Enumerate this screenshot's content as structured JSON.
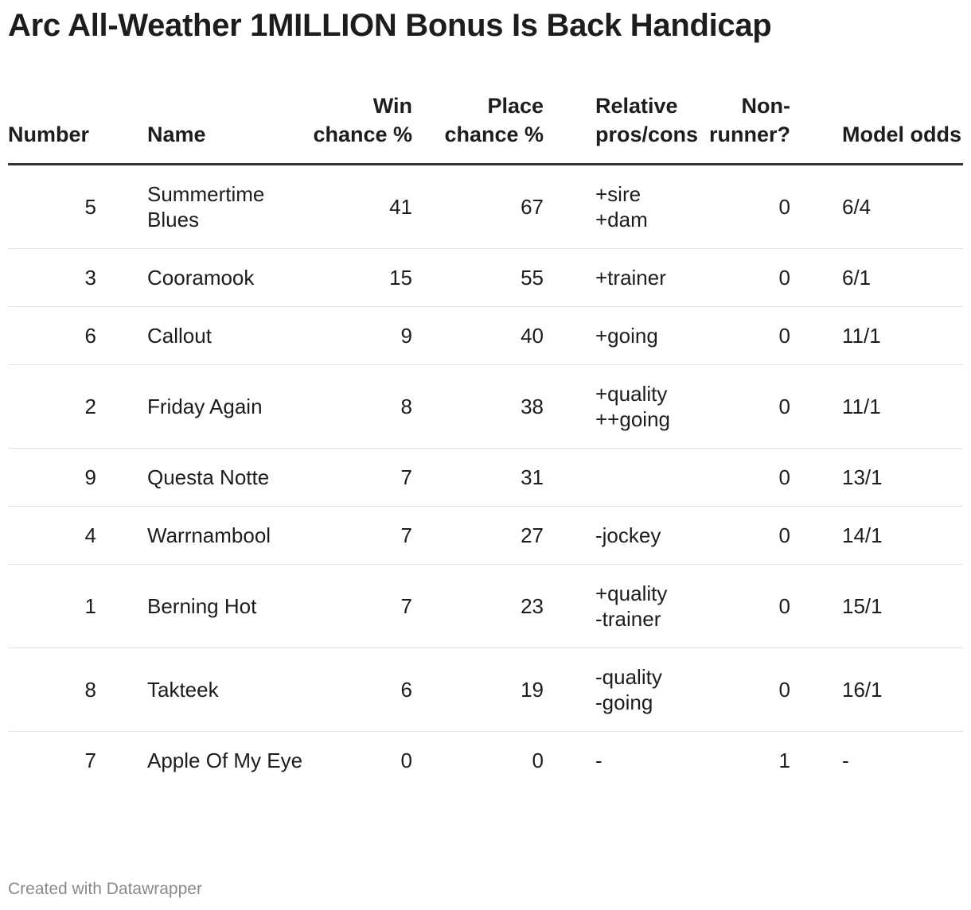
{
  "title": "Arc All-Weather 1MILLION Bonus Is Back Handicap",
  "columns": {
    "number": "Number",
    "name": "Name",
    "win": "Win chance %",
    "place": "Place chance %",
    "pros": "Relative pros/cons",
    "nonrunner": "Non-runner?",
    "odds": "Model odds"
  },
  "rows": [
    {
      "number": "5",
      "name": "Summertime Blues",
      "win": "41",
      "place": "67",
      "pros": [
        "+sire",
        "+dam"
      ],
      "nonrunner": "0",
      "odds": "6/4"
    },
    {
      "number": "3",
      "name": "Cooramook",
      "win": "15",
      "place": "55",
      "pros": [
        "+trainer"
      ],
      "nonrunner": "0",
      "odds": "6/1"
    },
    {
      "number": "6",
      "name": "Callout",
      "win": "9",
      "place": "40",
      "pros": [
        "+going"
      ],
      "nonrunner": "0",
      "odds": "11/1"
    },
    {
      "number": "2",
      "name": "Friday Again",
      "win": "8",
      "place": "38",
      "pros": [
        "+quality",
        "++going"
      ],
      "nonrunner": "0",
      "odds": "11/1"
    },
    {
      "number": "9",
      "name": "Questa Notte",
      "win": "7",
      "place": "31",
      "pros": [],
      "nonrunner": "0",
      "odds": "13/1"
    },
    {
      "number": "4",
      "name": "Warrnambool",
      "win": "7",
      "place": "27",
      "pros": [
        "-jockey"
      ],
      "nonrunner": "0",
      "odds": "14/1"
    },
    {
      "number": "1",
      "name": "Berning Hot",
      "win": "7",
      "place": "23",
      "pros": [
        "+quality",
        "-trainer"
      ],
      "nonrunner": "0",
      "odds": "15/1"
    },
    {
      "number": "8",
      "name": "Takteek",
      "win": "6",
      "place": "19",
      "pros": [
        "-quality",
        "-going"
      ],
      "nonrunner": "0",
      "odds": "16/1"
    },
    {
      "number": "7",
      "name": "Apple Of My Eye",
      "win": "0",
      "place": "0",
      "pros": [
        "-"
      ],
      "nonrunner": "1",
      "odds": "-"
    }
  ],
  "chart_data": {
    "type": "table",
    "title": "Arc All-Weather 1MILLION Bonus Is Back Handicap",
    "headers": [
      "Number",
      "Name",
      "Win chance %",
      "Place chance %",
      "Relative pros/cons",
      "Non-runner?",
      "Model odds"
    ],
    "rows": [
      [
        5,
        "Summertime Blues",
        41,
        67,
        "+sire +dam",
        0,
        "6/4"
      ],
      [
        3,
        "Cooramook",
        15,
        55,
        "+trainer",
        0,
        "6/1"
      ],
      [
        6,
        "Callout",
        9,
        40,
        "+going",
        0,
        "11/1"
      ],
      [
        2,
        "Friday Again",
        8,
        38,
        "+quality ++going",
        0,
        "11/1"
      ],
      [
        9,
        "Questa Notte",
        7,
        31,
        "",
        0,
        "13/1"
      ],
      [
        4,
        "Warrnambool",
        7,
        27,
        "-jockey",
        0,
        "14/1"
      ],
      [
        1,
        "Berning Hot",
        7,
        23,
        "+quality -trainer",
        0,
        "15/1"
      ],
      [
        8,
        "Takteek",
        6,
        19,
        "-quality -going",
        0,
        "16/1"
      ],
      [
        7,
        "Apple Of My Eye",
        0,
        0,
        "-",
        1,
        "-"
      ]
    ]
  },
  "footer": "Created with Datawrapper"
}
